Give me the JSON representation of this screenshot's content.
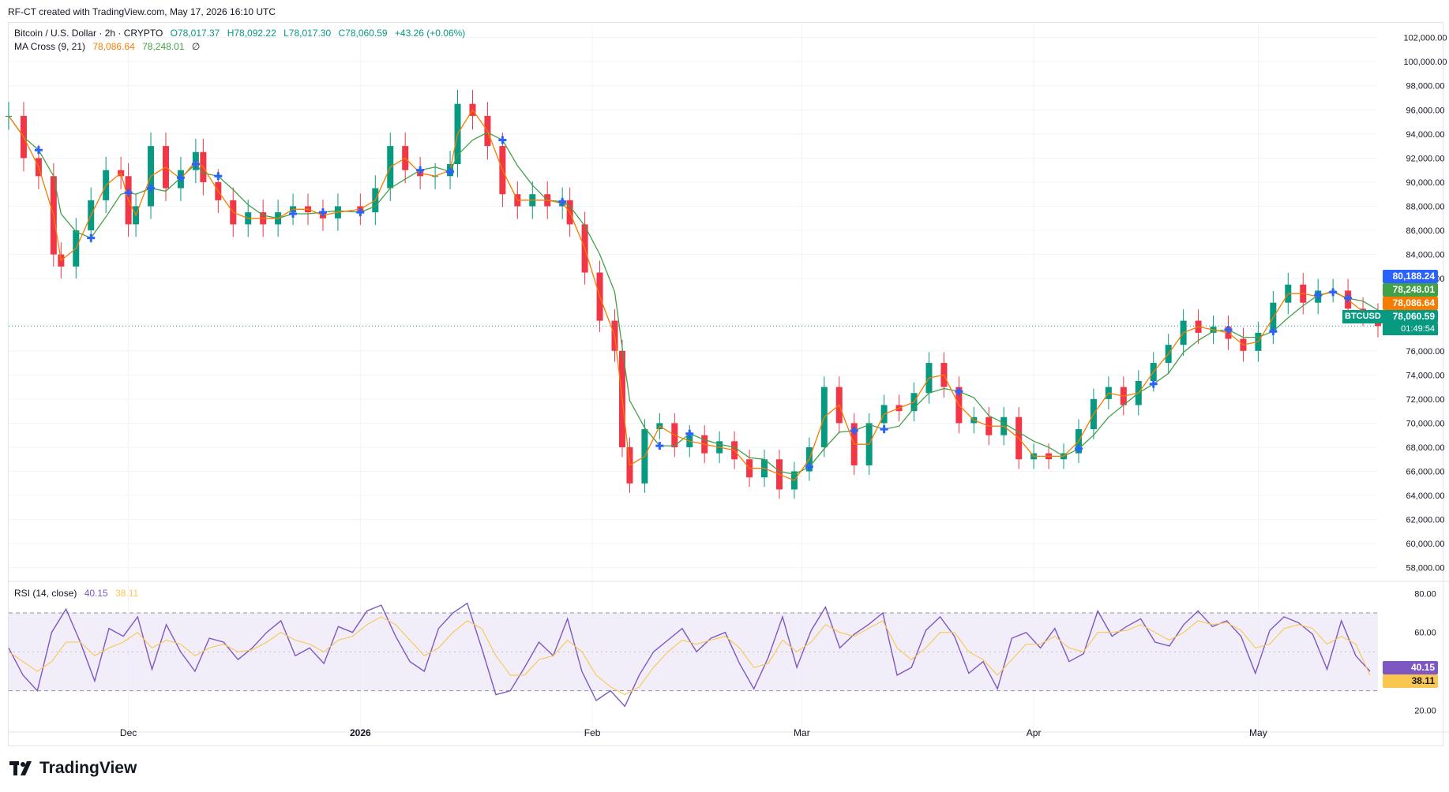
{
  "header": {
    "credit": "RF-CT created with TradingView.com, May 17, 2026 16:10 UTC"
  },
  "legend": {
    "title": "Bitcoin / U.S. Dollar · 2h · CRYPTO",
    "open": "O78,017.37",
    "high": "H78,092.22",
    "low": "L78,017.30",
    "close": "C78,060.59",
    "change": "+43.26 (+0.06%)",
    "ma_label": "MA Cross (9, 21)",
    "ma_fast": "78,086.64",
    "ma_slow": "78,248.01",
    "ma_settings": "∅",
    "rsi_label": "RSI (14, close)",
    "rsi_value": "40.15",
    "rsi_ma_value": "38.11"
  },
  "tags": {
    "high_tag": "80,188.24",
    "ma_slow_tag": "78,248.01",
    "ma_fast_tag": "78,086.64",
    "last_price_tag": "78,060.59",
    "symbol": "BTCUSD",
    "countdown": "01:49:54"
  },
  "colors": {
    "up": "#089981",
    "down": "#f23645",
    "ma_fast": "#f57c00",
    "ma_slow": "#43a047",
    "cross_marker": "#2962ff",
    "rsi": "#7e57c2",
    "rsi_ma": "#f9c74f",
    "rsi_band": "#ede7f6",
    "high_tag": "#2962ff"
  },
  "branding": {
    "logo_text": "TradingView"
  },
  "chart_data": [
    {
      "type": "candlestick",
      "title": "Bitcoin / U.S. Dollar · 2h · CRYPTO",
      "y_axis_ticks": [
        "102,000.00",
        "100,000.00",
        "98,000.00",
        "96,000.00",
        "94,000.00",
        "92,000.00",
        "90,000.00",
        "88,000.00",
        "86,000.00",
        "84,000.00",
        "82,000.00",
        "76,000.00",
        "74,000.00",
        "72,000.00",
        "70,000.00",
        "68,000.00",
        "66,000.00",
        "64,000.00",
        "62,000.00",
        "60,000.00",
        "58,000.00"
      ],
      "x_axis_ticks": [
        "Dec",
        "2026",
        "Feb",
        "Mar",
        "Apr",
        "May"
      ],
      "ylim": [
        57000,
        102500
      ],
      "grid": true,
      "last_price": 78060.59,
      "series": [
        {
          "name": "BTCUSD",
          "x": [
            "2025-11-15",
            "2025-11-17",
            "2025-11-19",
            "2025-11-21",
            "2025-11-22",
            "2025-11-24",
            "2025-11-26",
            "2025-11-28",
            "2025-11-30",
            "2025-12-01",
            "2025-12-02",
            "2025-12-04",
            "2025-12-06",
            "2025-12-08",
            "2025-12-10",
            "2025-12-11",
            "2025-12-13",
            "2025-12-15",
            "2025-12-17",
            "2025-12-19",
            "2025-12-21",
            "2025-12-23",
            "2025-12-25",
            "2025-12-27",
            "2025-12-29",
            "2026-01-01",
            "2026-01-03",
            "2026-01-05",
            "2026-01-07",
            "2026-01-09",
            "2026-01-11",
            "2026-01-13",
            "2026-01-14",
            "2026-01-16",
            "2026-01-18",
            "2026-01-20",
            "2026-01-22",
            "2026-01-24",
            "2026-01-26",
            "2026-01-28",
            "2026-01-29",
            "2026-01-31",
            "2026-02-02",
            "2026-02-04",
            "2026-02-05",
            "2026-02-06",
            "2026-02-08",
            "2026-02-10",
            "2026-02-12",
            "2026-02-14",
            "2026-02-16",
            "2026-02-18",
            "2026-02-20",
            "2026-02-22",
            "2026-02-24",
            "2026-02-26",
            "2026-02-28",
            "2026-03-02",
            "2026-03-04",
            "2026-03-06",
            "2026-03-08",
            "2026-03-10",
            "2026-03-12",
            "2026-03-14",
            "2026-03-16",
            "2026-03-18",
            "2026-03-20",
            "2026-03-22",
            "2026-03-24",
            "2026-03-26",
            "2026-03-28",
            "2026-03-30",
            "2026-04-01",
            "2026-04-03",
            "2026-04-05",
            "2026-04-07",
            "2026-04-09",
            "2026-04-11",
            "2026-04-13",
            "2026-04-15",
            "2026-04-17",
            "2026-04-19",
            "2026-04-21",
            "2026-04-23",
            "2026-04-25",
            "2026-04-27",
            "2026-04-29",
            "2026-05-01",
            "2026-05-03",
            "2026-05-05",
            "2026-05-07",
            "2026-05-09",
            "2026-05-11",
            "2026-05-13",
            "2026-05-15",
            "2026-05-17"
          ],
          "close": [
            95500,
            92000,
            90500,
            84000,
            83000,
            86000,
            88500,
            91000,
            90500,
            86500,
            88000,
            93000,
            89500,
            91000,
            92500,
            90000,
            88500,
            86500,
            87500,
            86500,
            87500,
            88000,
            87500,
            87000,
            88000,
            87500,
            89500,
            93000,
            91000,
            90500,
            90500,
            91500,
            96500,
            95500,
            93000,
            89000,
            88000,
            89000,
            88000,
            88500,
            86500,
            82500,
            78500,
            76000,
            68000,
            65000,
            69500,
            70000,
            68000,
            69000,
            67500,
            68500,
            67000,
            65500,
            67000,
            64500,
            66000,
            68000,
            73000,
            70000,
            66500,
            70000,
            71500,
            71000,
            72500,
            75000,
            73000,
            70000,
            70500,
            69000,
            70500,
            67000,
            67500,
            67000,
            67500,
            69500,
            72000,
            73000,
            71500,
            73500,
            75000,
            76500,
            78500,
            77500,
            78000,
            77000,
            76000,
            77500,
            80000,
            81500,
            80000,
            81000,
            81000,
            79500,
            79000,
            78060
          ]
        }
      ]
    },
    {
      "type": "line",
      "title": "RSI (14, close)",
      "y_axis_ticks": [
        "80.00",
        "60.00",
        "20.00"
      ],
      "ylim": [
        10,
        85
      ],
      "bands": [
        30,
        70
      ],
      "series": [
        {
          "name": "RSI",
          "values": [
            52,
            38,
            30,
            60,
            72,
            55,
            35,
            62,
            58,
            68,
            41,
            64,
            50,
            40,
            57,
            55,
            46,
            52,
            60,
            66,
            48,
            52,
            44,
            63,
            60,
            71,
            74,
            58,
            45,
            40,
            62,
            70,
            75,
            52,
            28,
            30,
            42,
            55,
            48,
            67,
            40,
            25,
            30,
            22,
            38,
            50,
            56,
            62,
            50,
            57,
            60,
            44,
            31,
            47,
            68,
            42,
            61,
            73,
            52,
            59,
            64,
            70,
            38,
            42,
            61,
            68,
            58,
            39,
            45,
            31,
            57,
            60,
            52,
            62,
            45,
            49,
            71,
            58,
            63,
            67,
            55,
            53,
            64,
            71,
            63,
            66,
            58,
            39,
            61,
            68,
            65,
            59,
            41,
            66,
            48,
            40
          ]
        },
        {
          "name": "RSI MA",
          "values": [
            50,
            45,
            40,
            45,
            55,
            55,
            48,
            52,
            55,
            60,
            52,
            56,
            54,
            48,
            52,
            54,
            50,
            51,
            55,
            60,
            56,
            54,
            50,
            56,
            58,
            64,
            68,
            64,
            56,
            48,
            52,
            60,
            66,
            62,
            48,
            38,
            38,
            46,
            48,
            56,
            50,
            38,
            32,
            28,
            32,
            42,
            50,
            56,
            54,
            56,
            58,
            52,
            42,
            44,
            56,
            50,
            55,
            64,
            60,
            58,
            62,
            66,
            52,
            46,
            52,
            60,
            60,
            50,
            46,
            38,
            46,
            54,
            54,
            58,
            52,
            50,
            60,
            60,
            61,
            64,
            60,
            56,
            60,
            66,
            64,
            65,
            61,
            52,
            54,
            62,
            64,
            62,
            54,
            58,
            54,
            38
          ]
        }
      ]
    }
  ]
}
